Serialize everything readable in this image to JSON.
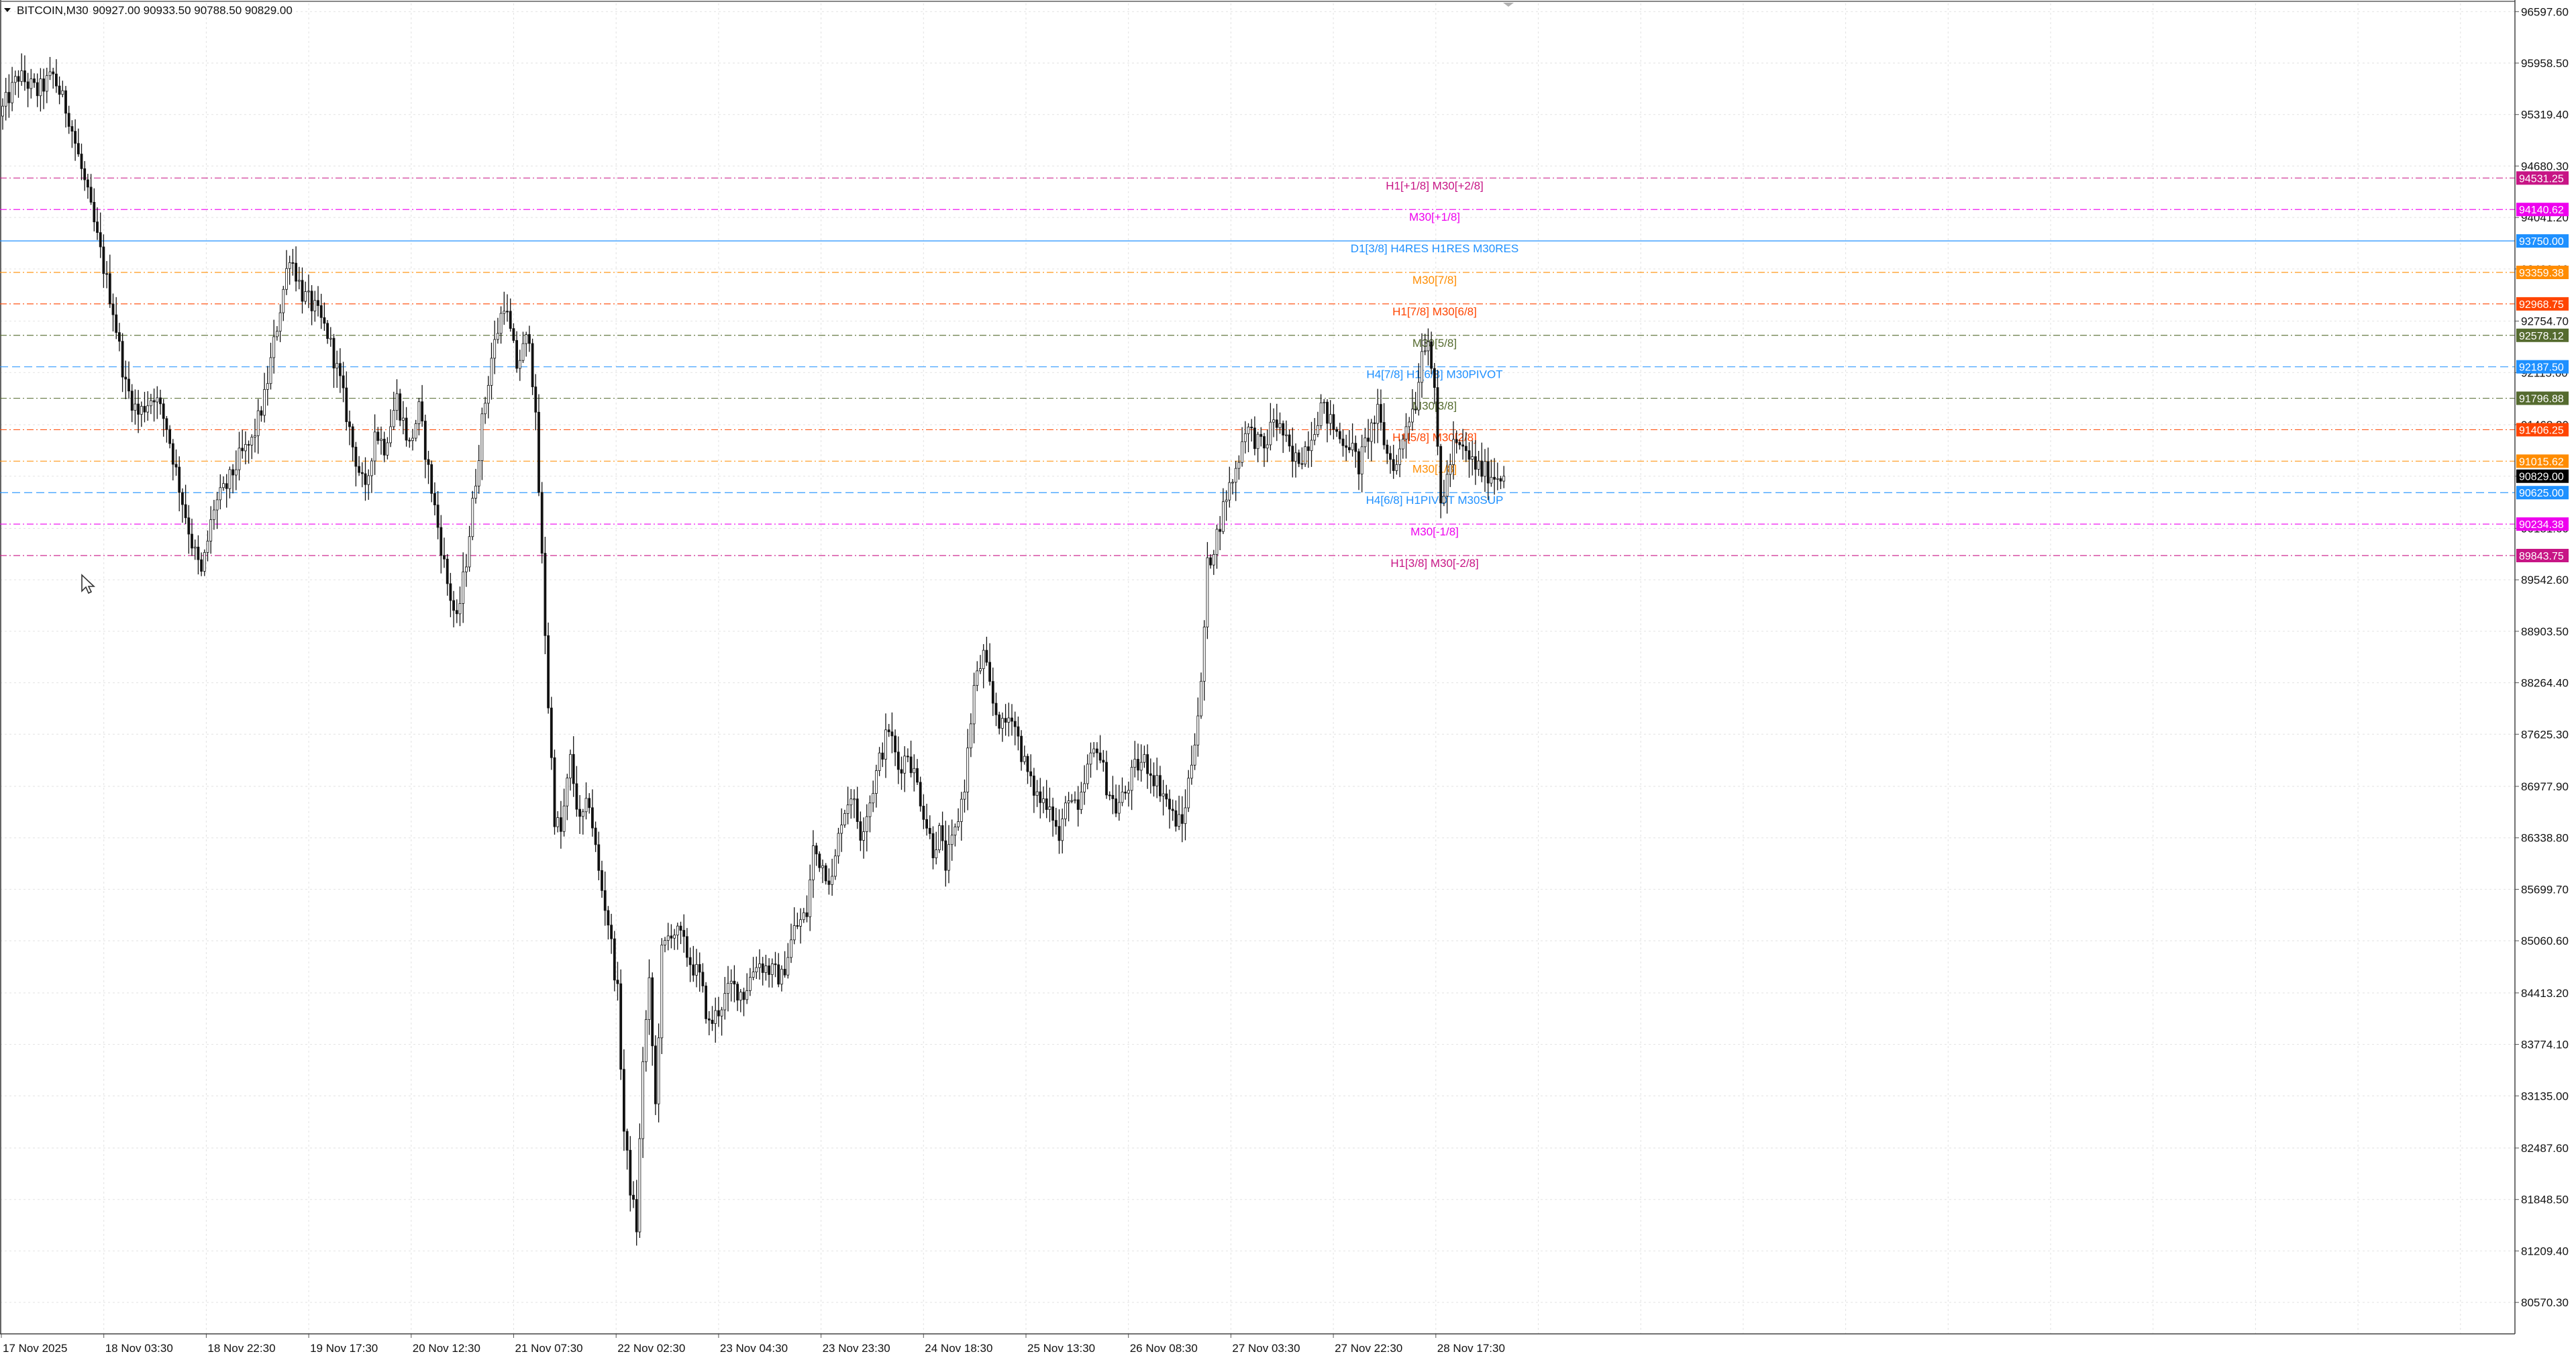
{
  "header": {
    "symbol_label": "BITCOIN,M30",
    "ohlc_text": "90927.00 90933.50 90788.50 90829.00"
  },
  "chart_data": {
    "type": "candlestick",
    "timeframe": "M30",
    "ylim": [
      80180,
      96700
    ],
    "price_ticks": [
      "96597.60",
      "95958.50",
      "95319.40",
      "94680.30",
      "94041.20",
      "93402.10",
      "92754.70",
      "92115.60",
      "91468.20",
      "90829.00",
      "90181.60",
      "89542.60",
      "88903.50",
      "88264.40",
      "87625.30",
      "86977.90",
      "86338.80",
      "85699.70",
      "85060.60",
      "84413.20",
      "83774.10",
      "83135.00",
      "82487.60",
      "81848.50",
      "81209.40",
      "80570.30"
    ],
    "time_labels": [
      "17 Nov 2025",
      "18 Nov 03:30",
      "18 Nov 22:30",
      "19 Nov 17:30",
      "20 Nov 12:30",
      "21 Nov 07:30",
      "22 Nov 02:30",
      "23 Nov 04:30",
      "23 Nov 23:30",
      "24 Nov 18:30",
      "25 Nov 13:30",
      "26 Nov 08:30",
      "27 Nov 03:30",
      "27 Nov 22:30",
      "28 Nov 17:30"
    ],
    "current_price": {
      "value": "90829.00",
      "color": "#000000"
    },
    "levels": [
      {
        "price": 94531.25,
        "tag": "94531.25",
        "label": "H1[+1/8] M30[+2/8]",
        "color": "#c71585"
      },
      {
        "price": 94140.62,
        "tag": "94140.62",
        "label": "M30[+1/8]",
        "color": "#ee00ee"
      },
      {
        "price": 93750.0,
        "tag": "93750.00",
        "label": "D1[3/8] H4RES H1RES M30RES",
        "color": "#1e90ff"
      },
      {
        "price": 93359.38,
        "tag": "93359.38",
        "label": "M30[7/8]",
        "color": "#ff8c00"
      },
      {
        "price": 92968.75,
        "tag": "92968.75",
        "label": "H1[7/8] M30[6/8]",
        "color": "#ff4500"
      },
      {
        "price": 92578.12,
        "tag": "92578.12",
        "label": "M30[5/8]",
        "color": "#556b2f"
      },
      {
        "price": 92187.5,
        "tag": "92187.50",
        "label": "H4[7/8] H1[6/8] M30PIVOT",
        "color": "#1e90ff"
      },
      {
        "price": 91796.88,
        "tag": "91796.88",
        "label": "M30[3/8]",
        "color": "#556b2f"
      },
      {
        "price": 91406.25,
        "tag": "91406.25",
        "label": "H1[5/8] M30[2/8]",
        "color": "#ff4500"
      },
      {
        "price": 91015.62,
        "tag": "91015.62",
        "label": "M30[1/8]",
        "color": "#ff8c00"
      },
      {
        "price": 90625.0,
        "tag": "90625.00",
        "label": "H4[6/8] H1PIVOT M30SUP",
        "color": "#1e90ff"
      },
      {
        "price": 90234.38,
        "tag": "90234.38",
        "label": "M30[-1/8]",
        "color": "#ee00ee"
      },
      {
        "price": 89843.75,
        "tag": "89843.75",
        "label": "H1[3/8] M30[-2/8]",
        "color": "#c71585"
      }
    ],
    "series": [
      {
        "type": "candlestick",
        "keypoints": [
          [
            0,
            95300
          ],
          [
            6,
            95800
          ],
          [
            12,
            95600
          ],
          [
            17,
            95800
          ],
          [
            22,
            95300
          ],
          [
            28,
            94300
          ],
          [
            32,
            93600
          ],
          [
            36,
            92900
          ],
          [
            40,
            91950
          ],
          [
            44,
            91600
          ],
          [
            49,
            91850
          ],
          [
            53,
            91450
          ],
          [
            57,
            90700
          ],
          [
            61,
            90000
          ],
          [
            64,
            89600
          ],
          [
            68,
            90450
          ],
          [
            72,
            90700
          ],
          [
            76,
            91050
          ],
          [
            80,
            91250
          ],
          [
            84,
            91800
          ],
          [
            88,
            92700
          ],
          [
            92,
            93600
          ],
          [
            96,
            93100
          ],
          [
            100,
            92900
          ],
          [
            104,
            92600
          ],
          [
            108,
            92000
          ],
          [
            112,
            91200
          ],
          [
            116,
            90600
          ],
          [
            119,
            91400
          ],
          [
            122,
            91200
          ],
          [
            126,
            91800
          ],
          [
            130,
            91200
          ],
          [
            133,
            91650
          ],
          [
            136,
            90900
          ],
          [
            139,
            90200
          ],
          [
            142,
            89500
          ],
          [
            145,
            89000
          ],
          [
            148,
            89800
          ],
          [
            151,
            90800
          ],
          [
            153,
            91500
          ],
          [
            156,
            92300
          ],
          [
            160,
            93000
          ],
          [
            164,
            92200
          ],
          [
            168,
            92600
          ],
          [
            170,
            91500
          ],
          [
            172,
            89800
          ],
          [
            174,
            88000
          ],
          [
            176,
            86600
          ],
          [
            178,
            86400
          ],
          [
            181,
            87300
          ],
          [
            184,
            86500
          ],
          [
            187,
            86800
          ],
          [
            190,
            85900
          ],
          [
            193,
            85300
          ],
          [
            196,
            84400
          ],
          [
            198,
            82700
          ],
          [
            200,
            82000
          ],
          [
            202,
            81500
          ],
          [
            204,
            83600
          ],
          [
            206,
            84500
          ],
          [
            208,
            83000
          ],
          [
            210,
            84900
          ],
          [
            213,
            85200
          ],
          [
            216,
            85100
          ],
          [
            219,
            84800
          ],
          [
            222,
            84600
          ],
          [
            225,
            84000
          ],
          [
            228,
            84200
          ],
          [
            232,
            84500
          ],
          [
            236,
            84400
          ],
          [
            240,
            84800
          ],
          [
            244,
            84700
          ],
          [
            248,
            84600
          ],
          [
            252,
            85200
          ],
          [
            256,
            85400
          ],
          [
            258,
            86200
          ],
          [
            261,
            86000
          ],
          [
            264,
            85800
          ],
          [
            267,
            86600
          ],
          [
            270,
            86900
          ],
          [
            273,
            86400
          ],
          [
            276,
            86800
          ],
          [
            279,
            87300
          ],
          [
            282,
            87700
          ],
          [
            285,
            87200
          ],
          [
            288,
            87400
          ],
          [
            291,
            87000
          ],
          [
            294,
            86500
          ],
          [
            296,
            86200
          ],
          [
            298,
            86400
          ],
          [
            300,
            86000
          ],
          [
            303,
            86400
          ],
          [
            306,
            87000
          ],
          [
            309,
            88200
          ],
          [
            312,
            88600
          ],
          [
            315,
            88000
          ],
          [
            318,
            87700
          ],
          [
            321,
            87900
          ],
          [
            324,
            87400
          ],
          [
            327,
            87000
          ],
          [
            330,
            86800
          ],
          [
            333,
            86800
          ],
          [
            336,
            86300
          ],
          [
            339,
            86900
          ],
          [
            342,
            86600
          ],
          [
            345,
            87200
          ],
          [
            348,
            87500
          ],
          [
            351,
            87000
          ],
          [
            354,
            86700
          ],
          [
            357,
            86900
          ],
          [
            360,
            87200
          ],
          [
            363,
            87300
          ],
          [
            366,
            87100
          ],
          [
            369,
            86900
          ],
          [
            372,
            86600
          ],
          [
            375,
            86500
          ],
          [
            378,
            87300
          ],
          [
            381,
            88200
          ],
          [
            383,
            89700
          ],
          [
            386,
            90100
          ],
          [
            389,
            90600
          ],
          [
            392,
            90900
          ],
          [
            395,
            91450
          ],
          [
            398,
            91300
          ],
          [
            401,
            91150
          ],
          [
            404,
            91550
          ],
          [
            407,
            91350
          ],
          [
            410,
            91000
          ],
          [
            413,
            91100
          ],
          [
            416,
            91350
          ],
          [
            419,
            91700
          ],
          [
            422,
            91500
          ],
          [
            425,
            91300
          ],
          [
            428,
            91250
          ],
          [
            431,
            90950
          ],
          [
            434,
            91350
          ],
          [
            437,
            91600
          ],
          [
            440,
            91100
          ],
          [
            443,
            90950
          ],
          [
            446,
            91500
          ],
          [
            449,
            91750
          ],
          [
            451,
            92400
          ],
          [
            453,
            92600
          ],
          [
            455,
            91800
          ],
          [
            457,
            90500
          ],
          [
            459,
            90800
          ],
          [
            461,
            91200
          ],
          [
            464,
            91150
          ],
          [
            467,
            91000
          ],
          [
            470,
            90900
          ],
          [
            473,
            90850
          ],
          [
            476,
            90830
          ]
        ]
      }
    ]
  }
}
